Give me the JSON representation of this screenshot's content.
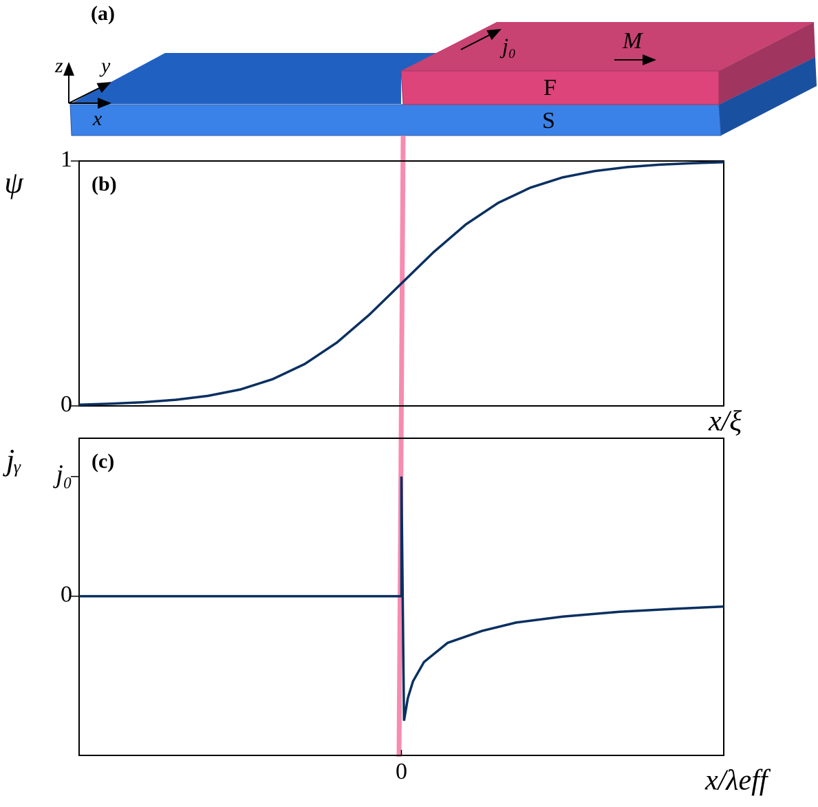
{
  "panel_a": {
    "label": "(a)",
    "axis_z": "z",
    "axis_y": "y",
    "axis_x": "x",
    "current": "j₀",
    "magnetization": "M",
    "ferromagnet": "F",
    "superconductor": "S"
  },
  "chart_data": [
    {
      "type": "line",
      "label": "(b)",
      "y_label": "ψ",
      "x_label": "x/ξ",
      "color": "#0a3060",
      "xlim": [
        -10,
        10
      ],
      "ylim": [
        0,
        1
      ],
      "yticks": [
        0,
        1
      ],
      "x": [
        -10,
        -9,
        -8,
        -7,
        -6,
        -5,
        -4,
        -3,
        -2,
        -1,
        0,
        1,
        2,
        3,
        4,
        5,
        6,
        7,
        8,
        9,
        10
      ],
      "values": [
        0.005,
        0.009,
        0.015,
        0.025,
        0.041,
        0.067,
        0.109,
        0.171,
        0.259,
        0.372,
        0.5,
        0.628,
        0.741,
        0.829,
        0.891,
        0.933,
        0.959,
        0.975,
        0.985,
        0.991,
        0.995
      ]
    },
    {
      "type": "line",
      "label": "(c)",
      "y_label": "jᵧ",
      "x_label": "x/λeff",
      "color": "#0a3060",
      "xlim": [
        -10,
        10
      ],
      "ylim": [
        -1.33,
        1.32
      ],
      "yticks": [
        0,
        {
          "value": 1,
          "label": "j₀"
        }
      ],
      "xticks": [
        0
      ],
      "x": [
        -10,
        0,
        0,
        0.08,
        0.2,
        0.36,
        0.7,
        1.43,
        2.5,
        3.56,
        5,
        6.76,
        8.5,
        10
      ],
      "values": [
        0,
        0,
        1,
        -1.04,
        -0.85,
        -0.71,
        -0.55,
        -0.39,
        -0.29,
        -0.22,
        -0.17,
        -0.13,
        -0.105,
        -0.086
      ]
    }
  ]
}
